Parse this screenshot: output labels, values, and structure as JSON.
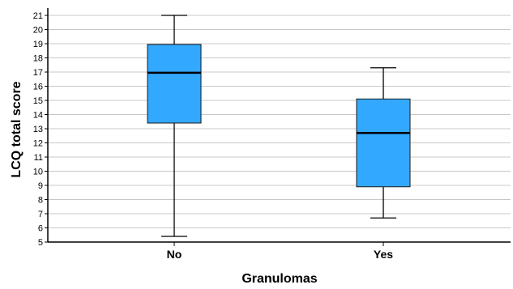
{
  "chart_data": {
    "type": "boxplot",
    "xlabel": "Granulomas",
    "ylabel": "LCQ total score",
    "ylim": [
      5,
      21.5
    ],
    "yticks": [
      5,
      6,
      7,
      8,
      9,
      10,
      11,
      12,
      13,
      14,
      15,
      16,
      17,
      18,
      19,
      20,
      21
    ],
    "grid": true,
    "categories": [
      "No",
      "Yes"
    ],
    "boxes": [
      {
        "category": "No",
        "min": 5.4,
        "q1": 13.4,
        "median": 16.95,
        "q3": 18.95,
        "max": 21.0
      },
      {
        "category": "Yes",
        "min": 6.7,
        "q1": 8.9,
        "median": 12.7,
        "q3": 15.1,
        "max": 17.3
      }
    ],
    "box_color": "#33a8ff",
    "median_color": "#000000",
    "grid_color": "#c8c8c8"
  }
}
